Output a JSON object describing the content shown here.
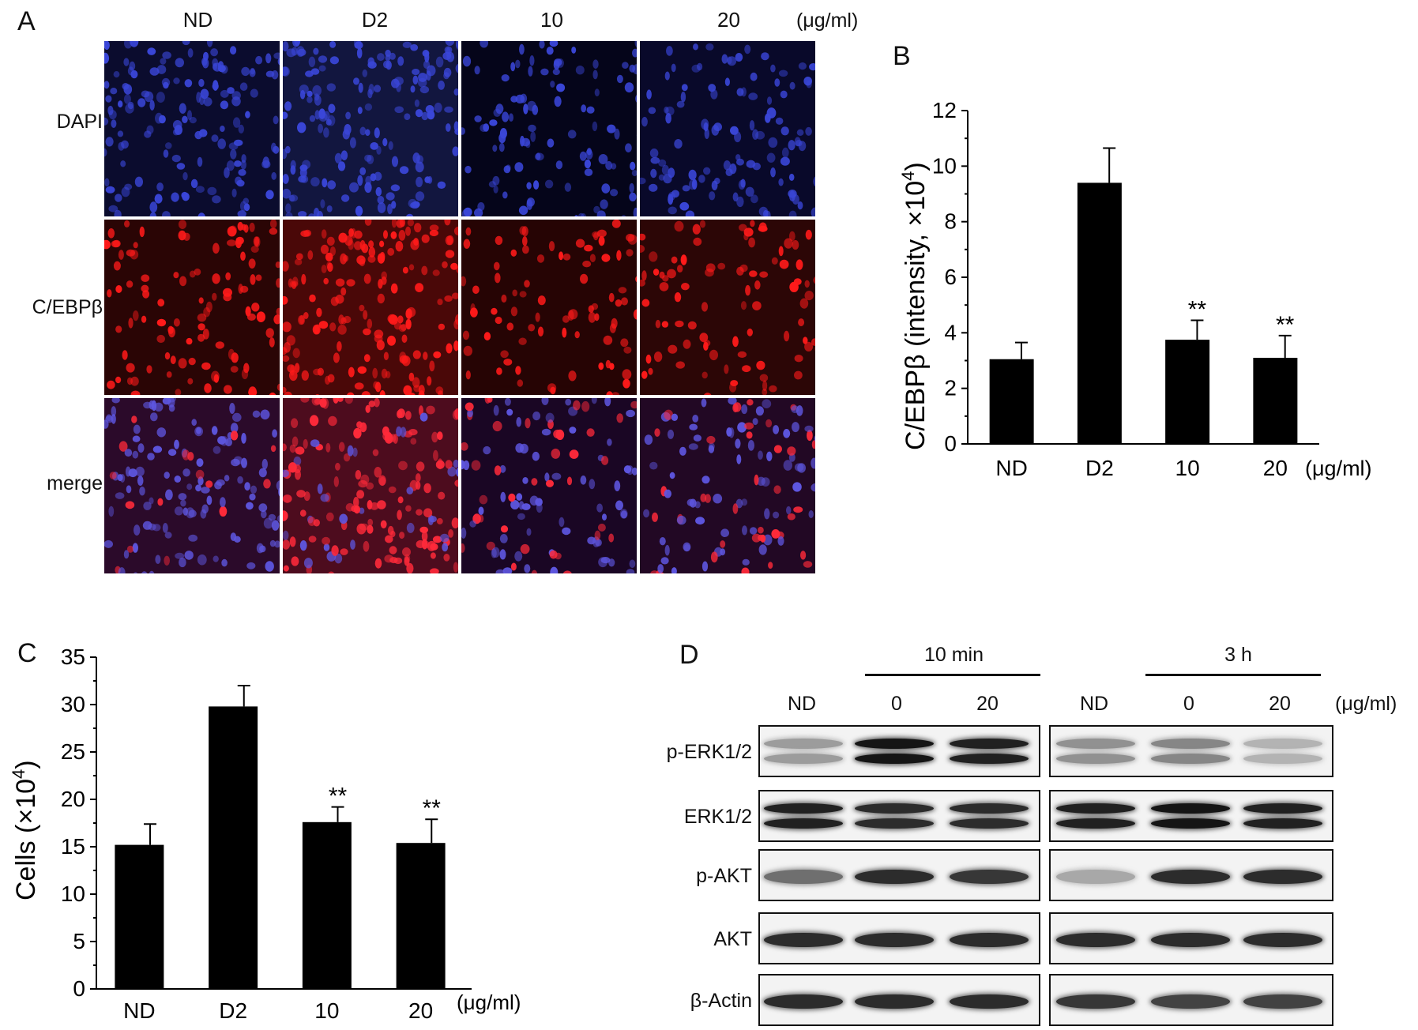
{
  "panel_a": {
    "letter": "A",
    "columns": [
      "ND",
      "D2",
      "10",
      "20"
    ],
    "unit": "(μg/ml)",
    "rows": [
      "DAPI",
      "C/EBPβ",
      "merge"
    ],
    "stain_colors": {
      "DAPI": "#3a46d8",
      "C/EBPβ": "#ff1a1a",
      "merge_blue": "#5e56e0",
      "merge_red": "#ff2a3a"
    }
  },
  "panel_b": {
    "letter": "B",
    "ylabel": "C/EBPβ (intensity, ×10",
    "ylabel_sup": "4",
    "ylabel_end": ")",
    "unit": "(μg/ml)"
  },
  "panel_c": {
    "letter": "C",
    "ylabel": "Cells (×10",
    "ylabel_sup": "4",
    "ylabel_end": ")",
    "unit": "(μg/ml)"
  },
  "panel_d": {
    "letter": "D",
    "group_labels": [
      "10 min",
      "3 h"
    ],
    "lane_labels": [
      "ND",
      "0",
      "20",
      "ND",
      "0",
      "20"
    ],
    "unit": "(μg/ml)",
    "blots": [
      {
        "label": "p-ERK1/2",
        "intensity_left": [
          0.35,
          0.95,
          0.9
        ],
        "intensity_right": [
          0.4,
          0.45,
          0.25
        ],
        "doublet": true
      },
      {
        "label": "ERK1/2",
        "intensity_left": [
          0.9,
          0.85,
          0.85
        ],
        "intensity_right": [
          0.9,
          0.95,
          0.9
        ],
        "doublet": true
      },
      {
        "label": "p-AKT",
        "intensity_left": [
          0.55,
          0.85,
          0.8
        ],
        "intensity_right": [
          0.3,
          0.85,
          0.85
        ],
        "doublet": false
      },
      {
        "label": "AKT",
        "intensity_left": [
          0.85,
          0.85,
          0.85
        ],
        "intensity_right": [
          0.85,
          0.85,
          0.85
        ],
        "doublet": false
      },
      {
        "label": "β-Actin",
        "intensity_left": [
          0.85,
          0.85,
          0.85
        ],
        "intensity_right": [
          0.8,
          0.75,
          0.75
        ],
        "doublet": false
      }
    ]
  },
  "chart_data": [
    {
      "type": "bar",
      "panel": "B",
      "categories": [
        "ND",
        "D2",
        "10",
        "20"
      ],
      "values": [
        3.05,
        9.4,
        3.75,
        3.1
      ],
      "errors": [
        0.6,
        1.25,
        0.7,
        0.8
      ],
      "annotations": [
        "",
        "",
        "**",
        "**"
      ],
      "ylabel": "C/EBPβ (intensity, ×10⁴)",
      "xlabel": "(μg/ml)",
      "ylim": [
        0,
        12
      ],
      "yticks": [
        0,
        2,
        4,
        6,
        8,
        10,
        12
      ],
      "bar_color": "#000000"
    },
    {
      "type": "bar",
      "panel": "C",
      "categories": [
        "ND",
        "D2",
        "10",
        "20"
      ],
      "values": [
        15.2,
        29.8,
        17.6,
        15.4
      ],
      "errors": [
        2.2,
        2.2,
        1.6,
        2.5
      ],
      "annotations": [
        "",
        "",
        "**",
        "**"
      ],
      "ylabel": "Cells (×10⁴)",
      "xlabel": "(μg/ml)",
      "ylim": [
        0,
        35
      ],
      "yticks": [
        0,
        5,
        10,
        15,
        20,
        25,
        30,
        35
      ],
      "bar_color": "#000000"
    }
  ]
}
